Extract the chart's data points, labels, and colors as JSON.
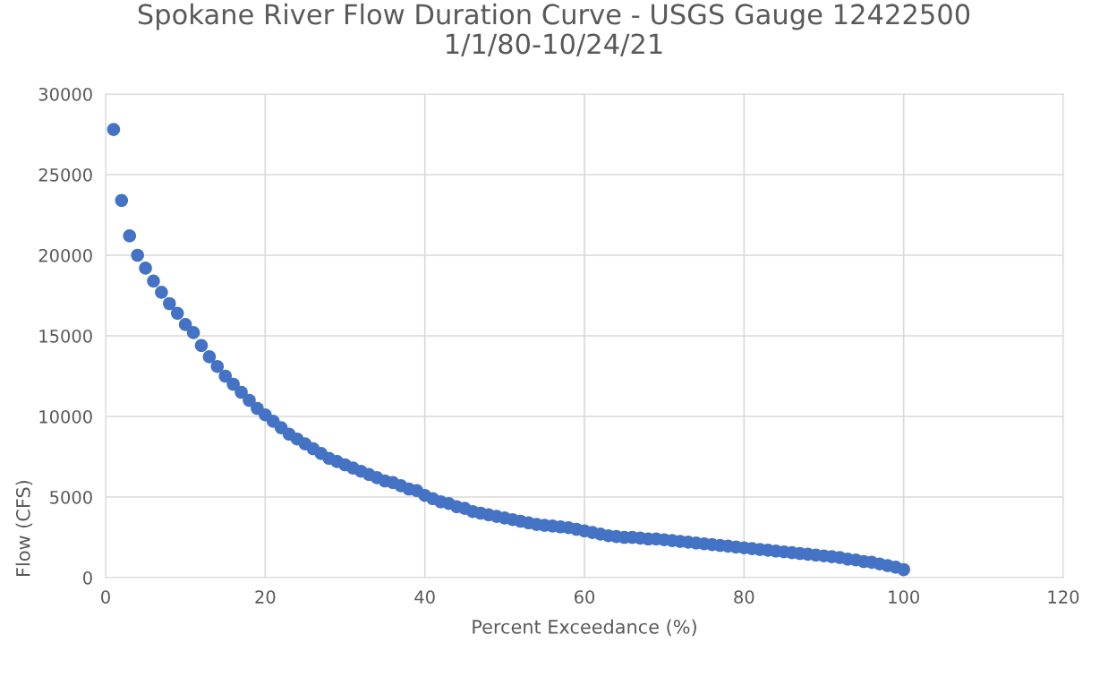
{
  "chart_data": {
    "type": "scatter",
    "title": "Spokane River Flow Duration Curve - USGS Gauge 12422500",
    "subtitle": "1/1/80-10/24/21",
    "xlabel": "Percent Exceedance (%)",
    "ylabel": "Flow (CFS)",
    "x": [
      1,
      2,
      3,
      4,
      5,
      6,
      7,
      8,
      9,
      10,
      11,
      12,
      13,
      14,
      15,
      16,
      17,
      18,
      19,
      20,
      21,
      22,
      23,
      24,
      25,
      26,
      27,
      28,
      29,
      30,
      31,
      32,
      33,
      34,
      35,
      36,
      37,
      38,
      39,
      40,
      41,
      42,
      43,
      44,
      45,
      46,
      47,
      48,
      49,
      50,
      51,
      52,
      53,
      54,
      55,
      56,
      57,
      58,
      59,
      60,
      61,
      62,
      63,
      64,
      65,
      66,
      67,
      68,
      69,
      70,
      71,
      72,
      73,
      74,
      75,
      76,
      77,
      78,
      79,
      80,
      81,
      82,
      83,
      84,
      85,
      86,
      87,
      88,
      89,
      90,
      91,
      92,
      93,
      94,
      95,
      96,
      97,
      98,
      99,
      100
    ],
    "series": [
      {
        "color": "#4472c4",
        "values": [
          27800,
          23400,
          21200,
          20000,
          19200,
          18400,
          17700,
          17000,
          16400,
          15700,
          15200,
          14400,
          13700,
          13100,
          12500,
          12000,
          11500,
          11000,
          10500,
          10100,
          9700,
          9300,
          8900,
          8600,
          8300,
          8000,
          7700,
          7400,
          7200,
          7000,
          6800,
          6600,
          6400,
          6200,
          6000,
          5900,
          5700,
          5500,
          5400,
          5100,
          4900,
          4700,
          4600,
          4400,
          4300,
          4100,
          4000,
          3900,
          3800,
          3700,
          3600,
          3500,
          3400,
          3300,
          3250,
          3200,
          3150,
          3100,
          3000,
          2900,
          2800,
          2700,
          2600,
          2550,
          2500,
          2500,
          2450,
          2400,
          2400,
          2350,
          2300,
          2250,
          2200,
          2150,
          2100,
          2050,
          2000,
          1950,
          1900,
          1850,
          1800,
          1750,
          1700,
          1650,
          1600,
          1550,
          1500,
          1450,
          1400,
          1350,
          1300,
          1250,
          1150,
          1100,
          1000,
          950,
          850,
          750,
          650,
          500
        ]
      }
    ],
    "xlim": [
      0,
      120
    ],
    "xticks": [
      0,
      20,
      40,
      60,
      80,
      100,
      120
    ],
    "ylim": [
      0,
      30000
    ],
    "yticks": [
      0,
      5000,
      10000,
      15000,
      20000,
      25000,
      30000
    ],
    "grid": true,
    "marker": "circle"
  }
}
